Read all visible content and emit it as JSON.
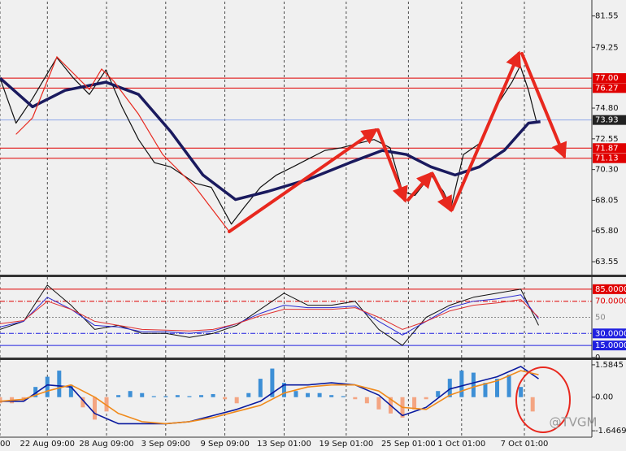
{
  "chart_data": [
    {
      "type": "line",
      "ylim": [
        62.6,
        82.6
      ],
      "yticks": [
        81.55,
        79.25,
        {
          "value": 74.8,
          "label": "74.80"
        },
        72.55,
        {
          "value": 70.3,
          "label": "70.30"
        },
        68.05,
        {
          "value": 65.8,
          "label": "65.80"
        },
        63.55,
        {
          "value": 77,
          "label": "77.00",
          "color": "#e00000",
          "line": "solid",
          "box": true
        },
        {
          "value": 76.27,
          "color": "#e00000",
          "line": "solid",
          "box": true
        },
        {
          "value": 73.93,
          "color": "#8fa8e8",
          "line": "solid",
          "box": true,
          "box_color": "#222222"
        },
        {
          "value": 71.87,
          "color": "#e00000",
          "line": "solid",
          "box": true
        },
        {
          "value": 71.13,
          "color": "#e00000",
          "line": "solid",
          "box": true
        }
      ],
      "series": [
        {
          "color": "#111111",
          "width": 1.2,
          "x": [
            0,
            2.7,
            5.5,
            9.6,
            12.4,
            15.1,
            17.9,
            20.6,
            23.4,
            26.1,
            28.8,
            33,
            35.7,
            39.1,
            41.2,
            44,
            46.7,
            49.5,
            52.2,
            54.9,
            57.7,
            60.4,
            63.2,
            65.9,
            68,
            70.1,
            72.8,
            74.9,
            76.2,
            78.3,
            81,
            83.8,
            86.5,
            87.9,
            89.3,
            90.7
          ],
          "values": [
            77.0,
            73.7,
            75.5,
            78.5,
            77.0,
            75.8,
            77.6,
            74.9,
            72.5,
            70.8,
            70.5,
            69.3,
            69.0,
            66.3,
            67.5,
            69.0,
            69.9,
            70.5,
            71.1,
            71.7,
            71.9,
            72.2,
            72.5,
            71.9,
            68.7,
            68.4,
            69.9,
            68.7,
            67.5,
            71.4,
            72.2,
            74.9,
            76.7,
            77.9,
            76.1,
            73.7
          ]
        },
        {
          "color": "#1a1a5e",
          "width": 3.5,
          "x": [
            0,
            5.5,
            11,
            17.9,
            23.4,
            28.8,
            34.3,
            39.8,
            45.3,
            52.2,
            59.1,
            64.6,
            68.7,
            72.8,
            76.9,
            81,
            85.2,
            89.3,
            91.3
          ],
          "values": [
            77.0,
            74.9,
            76.1,
            76.7,
            75.8,
            73.1,
            69.9,
            68.1,
            68.7,
            69.6,
            70.8,
            71.7,
            71.4,
            70.5,
            69.9,
            70.5,
            71.7,
            73.7,
            73.8
          ]
        }
      ]
    },
    {
      "type": "line",
      "ylim": [
        0,
        100
      ],
      "yticks": [
        {
          "value": 85,
          "label": "85.0000",
          "color": "#e00000",
          "line": "solid",
          "box": true
        },
        {
          "value": 70,
          "label": "70.0000",
          "color": "#e00000",
          "line": "dashdot"
        },
        {
          "value": 50,
          "color": "#888888",
          "line": "dotted"
        },
        {
          "value": 30,
          "label": "30.0000",
          "color": "#2020e0",
          "line": "dashdot",
          "box": true
        },
        {
          "value": 15,
          "label": "15.0000",
          "color": "#2020e0",
          "line": "solid",
          "box": true
        },
        0
      ],
      "x": [
        0,
        4,
        8,
        12,
        16,
        20,
        24,
        28,
        32,
        36,
        40,
        44,
        48,
        52,
        56,
        60,
        64,
        68,
        72,
        76,
        80,
        84,
        88,
        91
      ],
      "series": [
        {
          "color": "#111111",
          "width": 1,
          "values": [
            35,
            45,
            90,
            65,
            35,
            40,
            30,
            30,
            25,
            30,
            40,
            60,
            80,
            65,
            65,
            70,
            35,
            15,
            50,
            65,
            75,
            80,
            85,
            40
          ]
        },
        {
          "color": "#2a2ad0",
          "width": 1,
          "values": [
            38,
            45,
            75,
            60,
            40,
            38,
            32,
            32,
            30,
            33,
            42,
            55,
            65,
            62,
            62,
            64,
            45,
            28,
            45,
            62,
            70,
            73,
            78,
            48
          ]
        },
        {
          "color": "#e03030",
          "width": 1,
          "values": [
            42,
            46,
            70,
            60,
            45,
            40,
            35,
            34,
            33,
            35,
            42,
            52,
            60,
            60,
            60,
            62,
            50,
            35,
            45,
            58,
            65,
            68,
            72,
            50
          ]
        }
      ]
    },
    {
      "type": "bar",
      "ylim": [
        -1.96,
        1.82
      ],
      "yticks": [
        1.5845,
        {
          "value": 0,
          "label": "0.00"
        },
        -1.6469
      ],
      "xlim": [
        0,
        100
      ],
      "xticks": [
        {
          "value": 0,
          "label": "00"
        },
        {
          "value": 8,
          "label": "22 Aug 09:00"
        },
        {
          "value": 18,
          "label": "28 Aug 09:00"
        },
        {
          "value": 28,
          "label": "3 Sep 09:00"
        },
        {
          "value": 38,
          "label": "9 Sep 09:00"
        },
        {
          "value": 48,
          "label": "13 Sep 01:00"
        },
        {
          "value": 58.5,
          "label": "19 Sep 01:00"
        },
        {
          "value": 69,
          "label": "25 Sep 01:00"
        },
        {
          "value": 78,
          "label": "1 Oct 01:00"
        },
        {
          "value": 88.6,
          "label": "7 Oct 01:00"
        }
      ],
      "color": "#3d8fd6",
      "negative_color": "#f4a582",
      "x": [
        0,
        2,
        4,
        6,
        8,
        10,
        12,
        14,
        16,
        18,
        20,
        22,
        24,
        26,
        28,
        30,
        32,
        34,
        36,
        38,
        40,
        42,
        44,
        46,
        48,
        50,
        52,
        54,
        56,
        58,
        60,
        62,
        64,
        66,
        68,
        70,
        72,
        74,
        76,
        78,
        80,
        82,
        84,
        86,
        88,
        90
      ],
      "values": [
        -0.3,
        -0.3,
        -0.2,
        0.5,
        1.0,
        1.3,
        0.6,
        -0.5,
        -1.1,
        -0.7,
        0.1,
        0.3,
        0.2,
        0.05,
        0.05,
        0.1,
        0.05,
        0.1,
        0.15,
        -0.1,
        -0.3,
        0.2,
        0.9,
        1.4,
        0.7,
        0.3,
        0.2,
        0.2,
        0.1,
        0.05,
        -0.1,
        -0.3,
        -0.6,
        -0.8,
        -1.0,
        -0.6,
        -0.1,
        0.3,
        0.9,
        1.3,
        1.2,
        0.7,
        0.9,
        1.1,
        0.5,
        -0.7
      ],
      "series": [
        {
          "color": "#0a1a9e",
          "width": 1.6,
          "x": [
            0,
            4,
            8,
            12,
            16,
            20,
            24,
            28,
            32,
            36,
            40,
            44,
            48,
            52,
            56,
            60,
            64,
            68,
            72,
            76,
            80,
            84,
            88,
            91
          ],
          "values": [
            -0.2,
            -0.2,
            0.6,
            0.5,
            -0.8,
            -1.3,
            -1.3,
            -1.3,
            -1.2,
            -0.9,
            -0.6,
            -0.2,
            0.6,
            0.6,
            0.7,
            0.6,
            0.1,
            -0.9,
            -0.5,
            0.4,
            0.7,
            1.0,
            1.5,
            0.9
          ]
        },
        {
          "color": "#f08a1a",
          "width": 1.6,
          "x": [
            0,
            4,
            8,
            12,
            16,
            20,
            24,
            28,
            32,
            36,
            40,
            44,
            48,
            52,
            56,
            60,
            64,
            68,
            72,
            76,
            80,
            84,
            88,
            91
          ],
          "values": [
            -0.2,
            -0.1,
            0.3,
            0.6,
            0.0,
            -0.8,
            -1.2,
            -1.3,
            -1.2,
            -1.0,
            -0.7,
            -0.4,
            0.2,
            0.5,
            0.6,
            0.6,
            0.3,
            -0.5,
            -0.6,
            0.1,
            0.5,
            0.8,
            1.3,
            1.1
          ]
        }
      ],
      "watermark": "@TVGM"
    }
  ]
}
